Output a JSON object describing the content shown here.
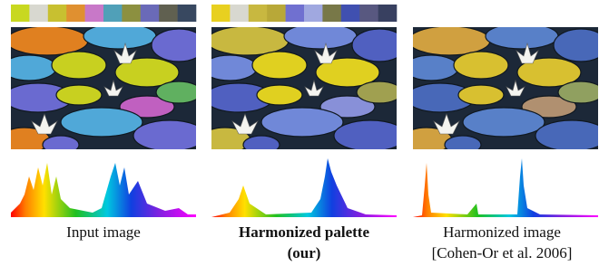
{
  "figure": {
    "columns": [
      {
        "palette": [
          "#c8d820",
          "#d8d8d0",
          "#c8c030",
          "#e09030",
          "#c878c8",
          "#50a0b8",
          "#8c9040",
          "#6a6ab8",
          "#606050",
          "#384860"
        ],
        "caption": [
          "Input image"
        ]
      },
      {
        "palette": [
          "#e8d020",
          "#d8d8d0",
          "#c8b840",
          "#b8a838",
          "#7070d0",
          "#a0a8e0",
          "#787848",
          "#4050b0",
          "#585880",
          "#384060"
        ],
        "caption": [
          "Harmonized palette",
          "(our)"
        ]
      },
      {
        "caption": [
          "Harmonized image",
          "[Cohen-Or et al. 2006]"
        ]
      }
    ]
  }
}
